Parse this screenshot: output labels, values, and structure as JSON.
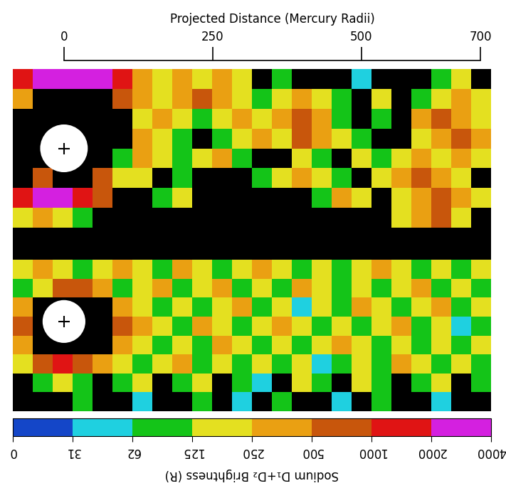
{
  "chart_data": {
    "type": "heatmap",
    "xlabel": "Projected Distance (Mercury Radii)",
    "xlim": [
      0,
      700
    ],
    "xticks": [
      0,
      250,
      500,
      700
    ],
    "tick_labels": "x",
    "marker": "plus",
    "colorbar": {
      "label": "Sodium D₁+D₂ Brightness (R)",
      "ticks": [
        0,
        31,
        62,
        125,
        250,
        500,
        1000,
        2000,
        4000
      ],
      "colors": [
        "#1446c8",
        "#1fd0e0",
        "#14c418",
        "#e4e020",
        "#eaa012",
        "#c8560c",
        "#e01414",
        "#d420e0"
      ]
    },
    "panels": [
      {
        "x_edges": [
          -86,
          -52.5,
          -19,
          14.5,
          48,
          81.5,
          115,
          148.5,
          182,
          215.5,
          249,
          282.5,
          316,
          349.5,
          383,
          416.5,
          450,
          483.5,
          517,
          550.5,
          584,
          617.5,
          651,
          684.5,
          718
        ],
        "y_edges": [
          133,
          99.75,
          66.5,
          33.25,
          0,
          -33.25,
          -66.5,
          -99.75,
          -133
        ],
        "mercury": {
          "x": 0,
          "y": 0,
          "radius": 40
        },
        "cells": [
          [
            1500,
            3000,
            3000,
            3000,
            3000,
            1500,
            350,
            180,
            350,
            180,
            350,
            180,
            null,
            90,
            null,
            null,
            null,
            45,
            null,
            null,
            null,
            90,
            180,
            null
          ],
          [
            350,
            null,
            null,
            null,
            null,
            700,
            350,
            180,
            350,
            700,
            350,
            180,
            90,
            180,
            350,
            180,
            90,
            null,
            180,
            null,
            90,
            180,
            350,
            180
          ],
          [
            null,
            null,
            null,
            null,
            null,
            null,
            180,
            350,
            180,
            90,
            180,
            350,
            180,
            350,
            700,
            350,
            90,
            null,
            90,
            null,
            350,
            700,
            350,
            180
          ],
          [
            null,
            null,
            null,
            null,
            null,
            null,
            350,
            180,
            90,
            null,
            90,
            180,
            350,
            180,
            700,
            350,
            180,
            90,
            null,
            null,
            180,
            350,
            700,
            350
          ],
          [
            null,
            null,
            null,
            null,
            null,
            90,
            350,
            180,
            90,
            180,
            350,
            90,
            null,
            null,
            180,
            90,
            null,
            180,
            90,
            180,
            350,
            180,
            350,
            180
          ],
          [
            null,
            700,
            null,
            null,
            700,
            180,
            180,
            null,
            90,
            null,
            null,
            null,
            90,
            180,
            350,
            180,
            90,
            null,
            180,
            350,
            700,
            350,
            180,
            null
          ],
          [
            1500,
            3000,
            3000,
            1500,
            700,
            null,
            null,
            90,
            180,
            null,
            null,
            null,
            null,
            null,
            null,
            90,
            350,
            180,
            null,
            180,
            350,
            700,
            350,
            180
          ],
          [
            180,
            350,
            180,
            90,
            null,
            null,
            null,
            null,
            null,
            null,
            null,
            null,
            null,
            null,
            null,
            null,
            null,
            null,
            null,
            180,
            350,
            700,
            180,
            null
          ]
        ]
      },
      {
        "x_edges": [
          -86,
          -52.5,
          -19,
          14.5,
          48,
          81.5,
          115,
          148.5,
          182,
          215.5,
          249,
          282.5,
          316,
          349.5,
          383,
          416.5,
          450,
          483.5,
          517,
          550.5,
          584,
          617.5,
          651,
          684.5,
          718
        ],
        "y_edges": [
          104,
          72.125,
          40.25,
          8.375,
          -23.5,
          -55.375,
          -87.25,
          -119.125,
          -151
        ],
        "mercury": {
          "x": 0,
          "y": 0,
          "radius": 36
        },
        "cells": [
          [
            180,
            350,
            180,
            90,
            180,
            350,
            180,
            90,
            350,
            180,
            90,
            180,
            350,
            180,
            90,
            180,
            90,
            180,
            350,
            180,
            90,
            180,
            90,
            180
          ],
          [
            90,
            180,
            700,
            700,
            350,
            90,
            180,
            350,
            90,
            180,
            350,
            90,
            180,
            90,
            350,
            180,
            90,
            180,
            90,
            180,
            350,
            90,
            180,
            90
          ],
          [
            350,
            null,
            null,
            null,
            null,
            350,
            180,
            90,
            180,
            90,
            180,
            350,
            90,
            180,
            45,
            180,
            90,
            350,
            180,
            90,
            180,
            350,
            90,
            180
          ],
          [
            700,
            null,
            null,
            null,
            null,
            700,
            350,
            180,
            90,
            350,
            180,
            90,
            180,
            350,
            180,
            90,
            180,
            90,
            180,
            350,
            90,
            180,
            45,
            90
          ],
          [
            350,
            null,
            null,
            null,
            null,
            350,
            180,
            90,
            180,
            90,
            350,
            180,
            90,
            180,
            90,
            180,
            350,
            180,
            90,
            180,
            90,
            180,
            90,
            180
          ],
          [
            180,
            700,
            1500,
            700,
            350,
            180,
            90,
            180,
            350,
            90,
            180,
            90,
            180,
            90,
            180,
            45,
            90,
            180,
            90,
            350,
            180,
            90,
            180,
            90
          ],
          [
            null,
            90,
            180,
            90,
            null,
            90,
            180,
            null,
            90,
            180,
            null,
            90,
            45,
            null,
            180,
            90,
            null,
            180,
            90,
            null,
            90,
            180,
            null,
            90
          ],
          [
            null,
            null,
            null,
            90,
            null,
            null,
            45,
            null,
            null,
            90,
            null,
            45,
            null,
            90,
            null,
            null,
            45,
            null,
            90,
            null,
            null,
            45,
            null,
            null
          ]
        ]
      }
    ]
  }
}
